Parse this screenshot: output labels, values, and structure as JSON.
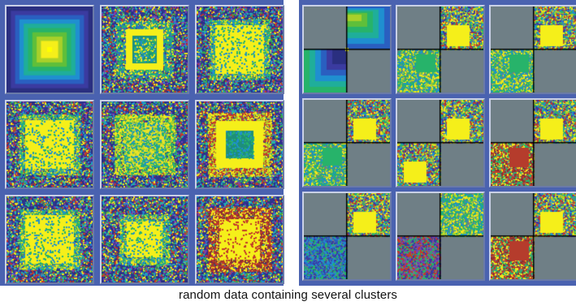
{
  "caption": "random data containing several clusters",
  "colors": {
    "frame": "#4a62b0",
    "ramp": [
      "#2a2f80",
      "#3b3ba0",
      "#2a5fc0",
      "#1f8fd0",
      "#1fae9a",
      "#27b36a",
      "#5fbf3a",
      "#a8d02a",
      "#f5ef1a"
    ],
    "noise": [
      "#f2e81c",
      "#3aa64a",
      "#1e8fd0",
      "#c23a2a",
      "#2a2f80",
      "#7a40b0",
      "#28b8a0"
    ],
    "quadrant_bg": "#6f7f86",
    "divider": "#000000",
    "center_dot": "#ffff00"
  },
  "left_grid": {
    "tiles": [
      {
        "name": "tile-1",
        "style": "ramp"
      },
      {
        "name": "tile-2",
        "style": "ring"
      },
      {
        "name": "tile-3",
        "style": "blob"
      },
      {
        "name": "tile-4",
        "style": "blob"
      },
      {
        "name": "tile-5",
        "style": "hollow"
      },
      {
        "name": "tile-6",
        "style": "ringred"
      },
      {
        "name": "tile-7",
        "style": "blob"
      },
      {
        "name": "tile-8",
        "style": "smallblob"
      },
      {
        "name": "tile-9",
        "style": "redring"
      }
    ]
  },
  "right_grid": {
    "tiles": [
      {
        "name": "tile-1",
        "style": "quad-ramp"
      },
      {
        "name": "tile-2",
        "style": "quad"
      },
      {
        "name": "tile-3",
        "style": "quad"
      },
      {
        "name": "tile-4",
        "style": "quad"
      },
      {
        "name": "tile-5",
        "style": "quad"
      },
      {
        "name": "tile-6",
        "style": "quad"
      },
      {
        "name": "tile-7",
        "style": "quad"
      },
      {
        "name": "tile-8",
        "style": "quad"
      },
      {
        "name": "tile-9",
        "style": "quad"
      }
    ]
  }
}
